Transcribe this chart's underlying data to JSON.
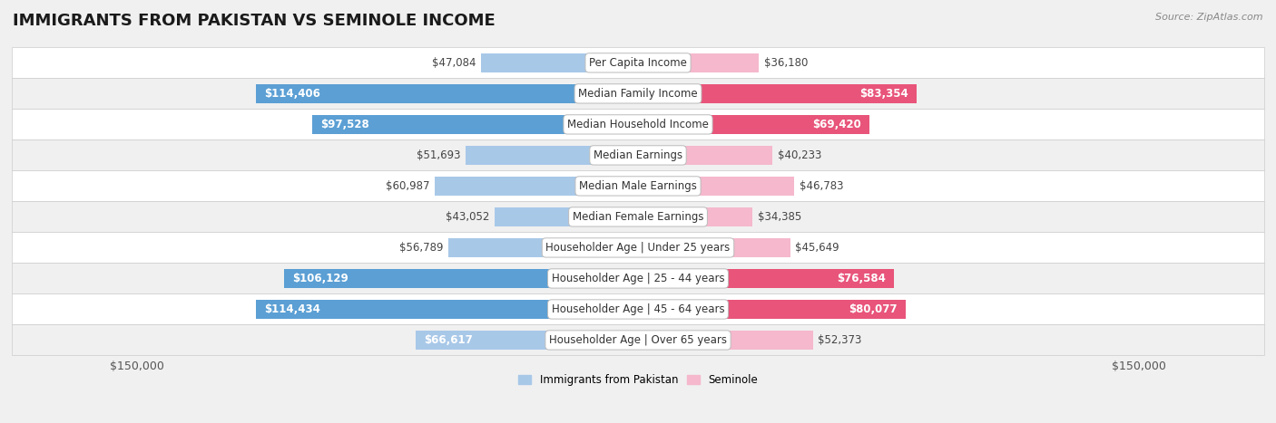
{
  "title": "IMMIGRANTS FROM PAKISTAN VS SEMINOLE INCOME",
  "source": "Source: ZipAtlas.com",
  "categories": [
    "Per Capita Income",
    "Median Family Income",
    "Median Household Income",
    "Median Earnings",
    "Median Male Earnings",
    "Median Female Earnings",
    "Householder Age | Under 25 years",
    "Householder Age | 25 - 44 years",
    "Householder Age | 45 - 64 years",
    "Householder Age | Over 65 years"
  ],
  "pakistan_values": [
    47084,
    114406,
    97528,
    51693,
    60987,
    43052,
    56789,
    106129,
    114434,
    66617
  ],
  "seminole_values": [
    36180,
    83354,
    69420,
    40233,
    46783,
    34385,
    45649,
    76584,
    80077,
    52373
  ],
  "pakistan_color_light": "#a8c8e8",
  "pakistan_color_dark": "#5b9fd4",
  "seminole_color_light": "#f5b8cc",
  "seminole_color_dark": "#e8547a",
  "pakistan_label": "Immigrants from Pakistan",
  "seminole_label": "Seminole",
  "xlim": 150000,
  "background_color": "#f0f0f0",
  "row_bg_color": "#ffffff",
  "row_alt_color": "#f0f0f0",
  "bar_height": 0.6,
  "title_fontsize": 13,
  "label_fontsize": 8.5,
  "tick_fontsize": 9,
  "source_fontsize": 8,
  "value_fontsize": 8.5,
  "inside_label_threshold_pak": 65000,
  "inside_label_threshold_sem": 65000,
  "dark_color_threshold_pak": 90000,
  "dark_color_threshold_sem": 60000
}
